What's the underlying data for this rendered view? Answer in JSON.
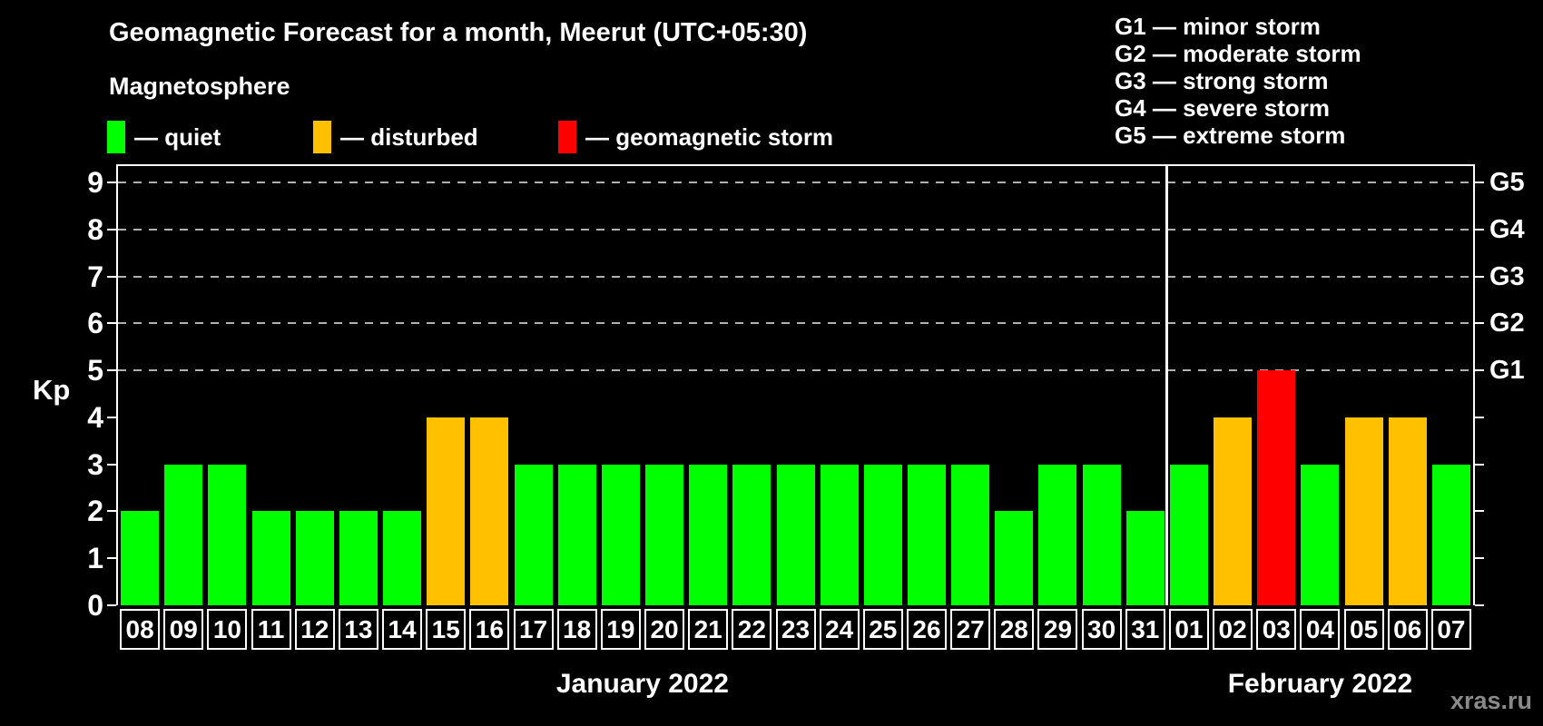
{
  "header": {
    "title": "Geomagnetic Forecast for a month, Meerut (UTC+05:30)",
    "subtitle": "Magnetosphere"
  },
  "legend": {
    "items": [
      {
        "status": "quiet",
        "label": "— quiet"
      },
      {
        "status": "disturbed",
        "label": "— disturbed"
      },
      {
        "status": "storm",
        "label": "— geomagnetic storm"
      }
    ]
  },
  "g_legend": {
    "items": [
      "G1 — minor storm",
      "G2 — moderate storm",
      "G3 — strong storm",
      "G4 — severe storm",
      "G5 — extreme storm"
    ]
  },
  "chart_data": {
    "type": "bar",
    "title": "Geomagnetic Forecast for a month, Meerut (UTC+05:30)",
    "ylabel": "Kp",
    "ylim": [
      0,
      9.35
    ],
    "y_ticks": [
      0,
      1,
      2,
      3,
      4,
      5,
      6,
      7,
      8,
      9
    ],
    "grid_levels": [
      5,
      6,
      7,
      8,
      9
    ],
    "grid_style": "dashed",
    "right_axis": [
      {
        "label": "G5",
        "kp": 9
      },
      {
        "label": "G4",
        "kp": 8
      },
      {
        "label": "G3",
        "kp": 7
      },
      {
        "label": "G2",
        "kp": 6
      },
      {
        "label": "G1",
        "kp": 5
      }
    ],
    "months": [
      {
        "label": "January 2022",
        "count": 24
      },
      {
        "label": "February 2022",
        "count": 7
      }
    ],
    "bars": [
      {
        "day": "08",
        "kp": 2,
        "status": "quiet"
      },
      {
        "day": "09",
        "kp": 3,
        "status": "quiet"
      },
      {
        "day": "10",
        "kp": 3,
        "status": "quiet"
      },
      {
        "day": "11",
        "kp": 2,
        "status": "quiet"
      },
      {
        "day": "12",
        "kp": 2,
        "status": "quiet"
      },
      {
        "day": "13",
        "kp": 2,
        "status": "quiet"
      },
      {
        "day": "14",
        "kp": 2,
        "status": "quiet"
      },
      {
        "day": "15",
        "kp": 4,
        "status": "disturbed"
      },
      {
        "day": "16",
        "kp": 4,
        "status": "disturbed"
      },
      {
        "day": "17",
        "kp": 3,
        "status": "quiet"
      },
      {
        "day": "18",
        "kp": 3,
        "status": "quiet"
      },
      {
        "day": "19",
        "kp": 3,
        "status": "quiet"
      },
      {
        "day": "20",
        "kp": 3,
        "status": "quiet"
      },
      {
        "day": "21",
        "kp": 3,
        "status": "quiet"
      },
      {
        "day": "22",
        "kp": 3,
        "status": "quiet"
      },
      {
        "day": "23",
        "kp": 3,
        "status": "quiet"
      },
      {
        "day": "24",
        "kp": 3,
        "status": "quiet"
      },
      {
        "day": "25",
        "kp": 3,
        "status": "quiet"
      },
      {
        "day": "26",
        "kp": 3,
        "status": "quiet"
      },
      {
        "day": "27",
        "kp": 3,
        "status": "quiet"
      },
      {
        "day": "28",
        "kp": 2,
        "status": "quiet"
      },
      {
        "day": "29",
        "kp": 3,
        "status": "quiet"
      },
      {
        "day": "30",
        "kp": 3,
        "status": "quiet"
      },
      {
        "day": "31",
        "kp": 2,
        "status": "quiet"
      },
      {
        "day": "01",
        "kp": 3,
        "status": "quiet"
      },
      {
        "day": "02",
        "kp": 4,
        "status": "disturbed"
      },
      {
        "day": "03",
        "kp": 5,
        "status": "storm"
      },
      {
        "day": "04",
        "kp": 3,
        "status": "quiet"
      },
      {
        "day": "05",
        "kp": 4,
        "status": "disturbed"
      },
      {
        "day": "06",
        "kp": 4,
        "status": "disturbed"
      },
      {
        "day": "07",
        "kp": 3,
        "status": "quiet"
      }
    ]
  },
  "watermark": "xras.ru",
  "colors": {
    "quiet": "#00FF00",
    "disturbed": "#FFC000",
    "storm": "#FF0000",
    "axis": "#FFFFFF",
    "grid": "#B0B0B0",
    "background": "#000000",
    "watermark": "#8A8A8A"
  }
}
